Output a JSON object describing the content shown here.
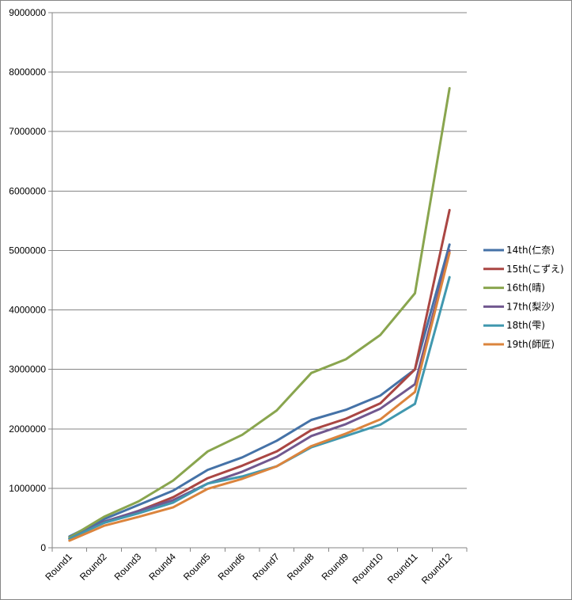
{
  "chart_data": {
    "type": "line",
    "title": "",
    "xlabel": "",
    "ylabel": "",
    "categories": [
      "Round1",
      "Round2",
      "Round3",
      "Round4",
      "Round5",
      "Round6",
      "Round7",
      "Round8",
      "Round9",
      "Round10",
      "Round11",
      "Round12"
    ],
    "y_ticks": [
      "0",
      "1000000",
      "2000000",
      "3000000",
      "4000000",
      "5000000",
      "6000000",
      "7000000",
      "8000000",
      "9000000"
    ],
    "ylim": [
      0,
      9000000
    ],
    "grid": "horizontal",
    "legend_position": "right",
    "series": [
      {
        "name": "14th(仁奈)",
        "color": "#4572A7",
        "values": [
          190000,
          480000,
          720000,
          960000,
          1310000,
          1520000,
          1800000,
          2150000,
          2320000,
          2560000,
          3000000,
          5100000
        ]
      },
      {
        "name": "15th(こずえ)",
        "color": "#AA4643",
        "values": [
          160000,
          420000,
          620000,
          850000,
          1170000,
          1380000,
          1620000,
          1980000,
          2170000,
          2430000,
          3000000,
          5680000
        ]
      },
      {
        "name": "16th(晴)",
        "color": "#89A54E",
        "values": [
          170000,
          520000,
          780000,
          1130000,
          1620000,
          1900000,
          2310000,
          2940000,
          3170000,
          3580000,
          4280000,
          7730000
        ]
      },
      {
        "name": "17th(梨沙)",
        "color": "#71588F",
        "values": [
          150000,
          440000,
          620000,
          800000,
          1080000,
          1280000,
          1530000,
          1880000,
          2080000,
          2340000,
          2750000,
          5000000
        ]
      },
      {
        "name": "18th(雫)",
        "color": "#4198AF",
        "values": [
          150000,
          420000,
          580000,
          760000,
          1080000,
          1200000,
          1370000,
          1690000,
          1880000,
          2070000,
          2420000,
          4550000
        ]
      },
      {
        "name": "19th(師匠)",
        "color": "#DB843D",
        "values": [
          120000,
          370000,
          520000,
          680000,
          990000,
          1160000,
          1370000,
          1710000,
          1920000,
          2160000,
          2620000,
          4960000
        ]
      }
    ]
  }
}
